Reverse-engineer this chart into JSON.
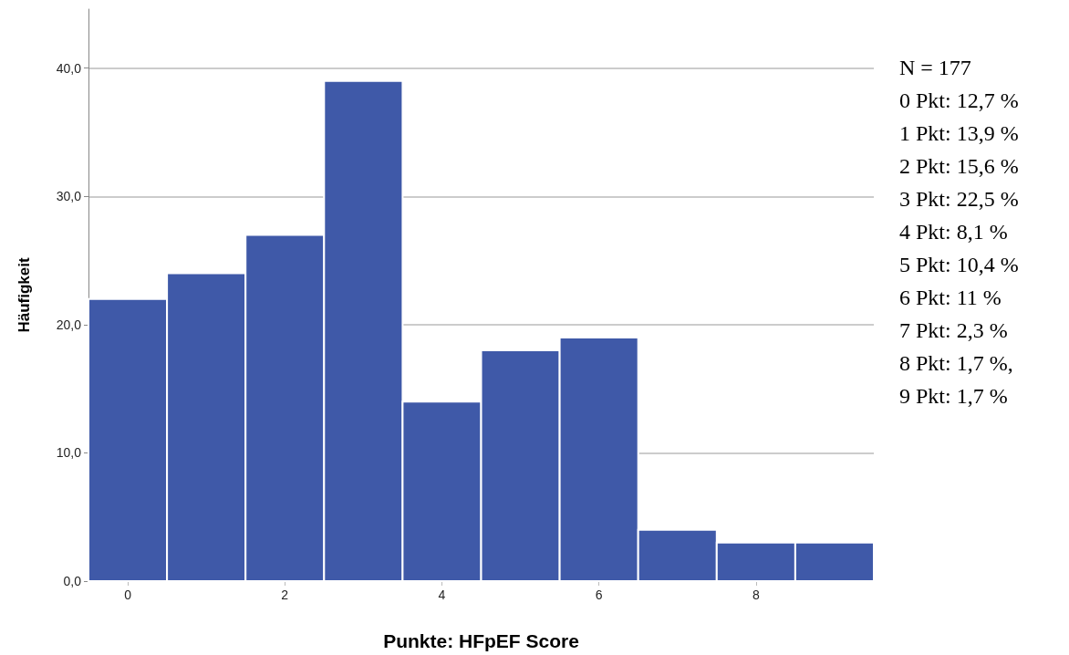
{
  "chart_data": {
    "type": "histogram",
    "xlabel": "Punkte: HFpEF Score",
    "ylabel": "Häufigkeit",
    "bins": [
      -0.5,
      0.5,
      1.5,
      2.5,
      3.5,
      4.5,
      5.5,
      6.5,
      7.5,
      8.5,
      9.5
    ],
    "values": [
      22,
      24,
      27,
      39,
      14,
      18,
      19,
      4,
      3,
      3
    ],
    "color": "#3f59a8",
    "xlim": [
      -0.5,
      9.5
    ],
    "xticks": [
      0,
      2,
      4,
      6,
      8
    ],
    "ylim": [
      0,
      44.6
    ],
    "yticks": [
      {
        "value": 0,
        "label": "0,0"
      },
      {
        "value": 10,
        "label": "10,0"
      },
      {
        "value": 20,
        "label": "20,0"
      },
      {
        "value": 30,
        "label": "30,0"
      },
      {
        "value": 40,
        "label": "40,0"
      }
    ],
    "grid": "y",
    "annotations": [
      "N = 177",
      "0 Pkt: 12,7 %",
      "1 Pkt: 13,9 %",
      "2 Pkt: 15,6 %",
      "3 Pkt: 22,5 %",
      "4 Pkt: 8,1 %",
      "5 Pkt: 10,4 %",
      "6 Pkt: 11 %",
      "7 Pkt: 2,3 %",
      "8 Pkt: 1,7 %,",
      "9 Pkt: 1,7 %"
    ]
  }
}
